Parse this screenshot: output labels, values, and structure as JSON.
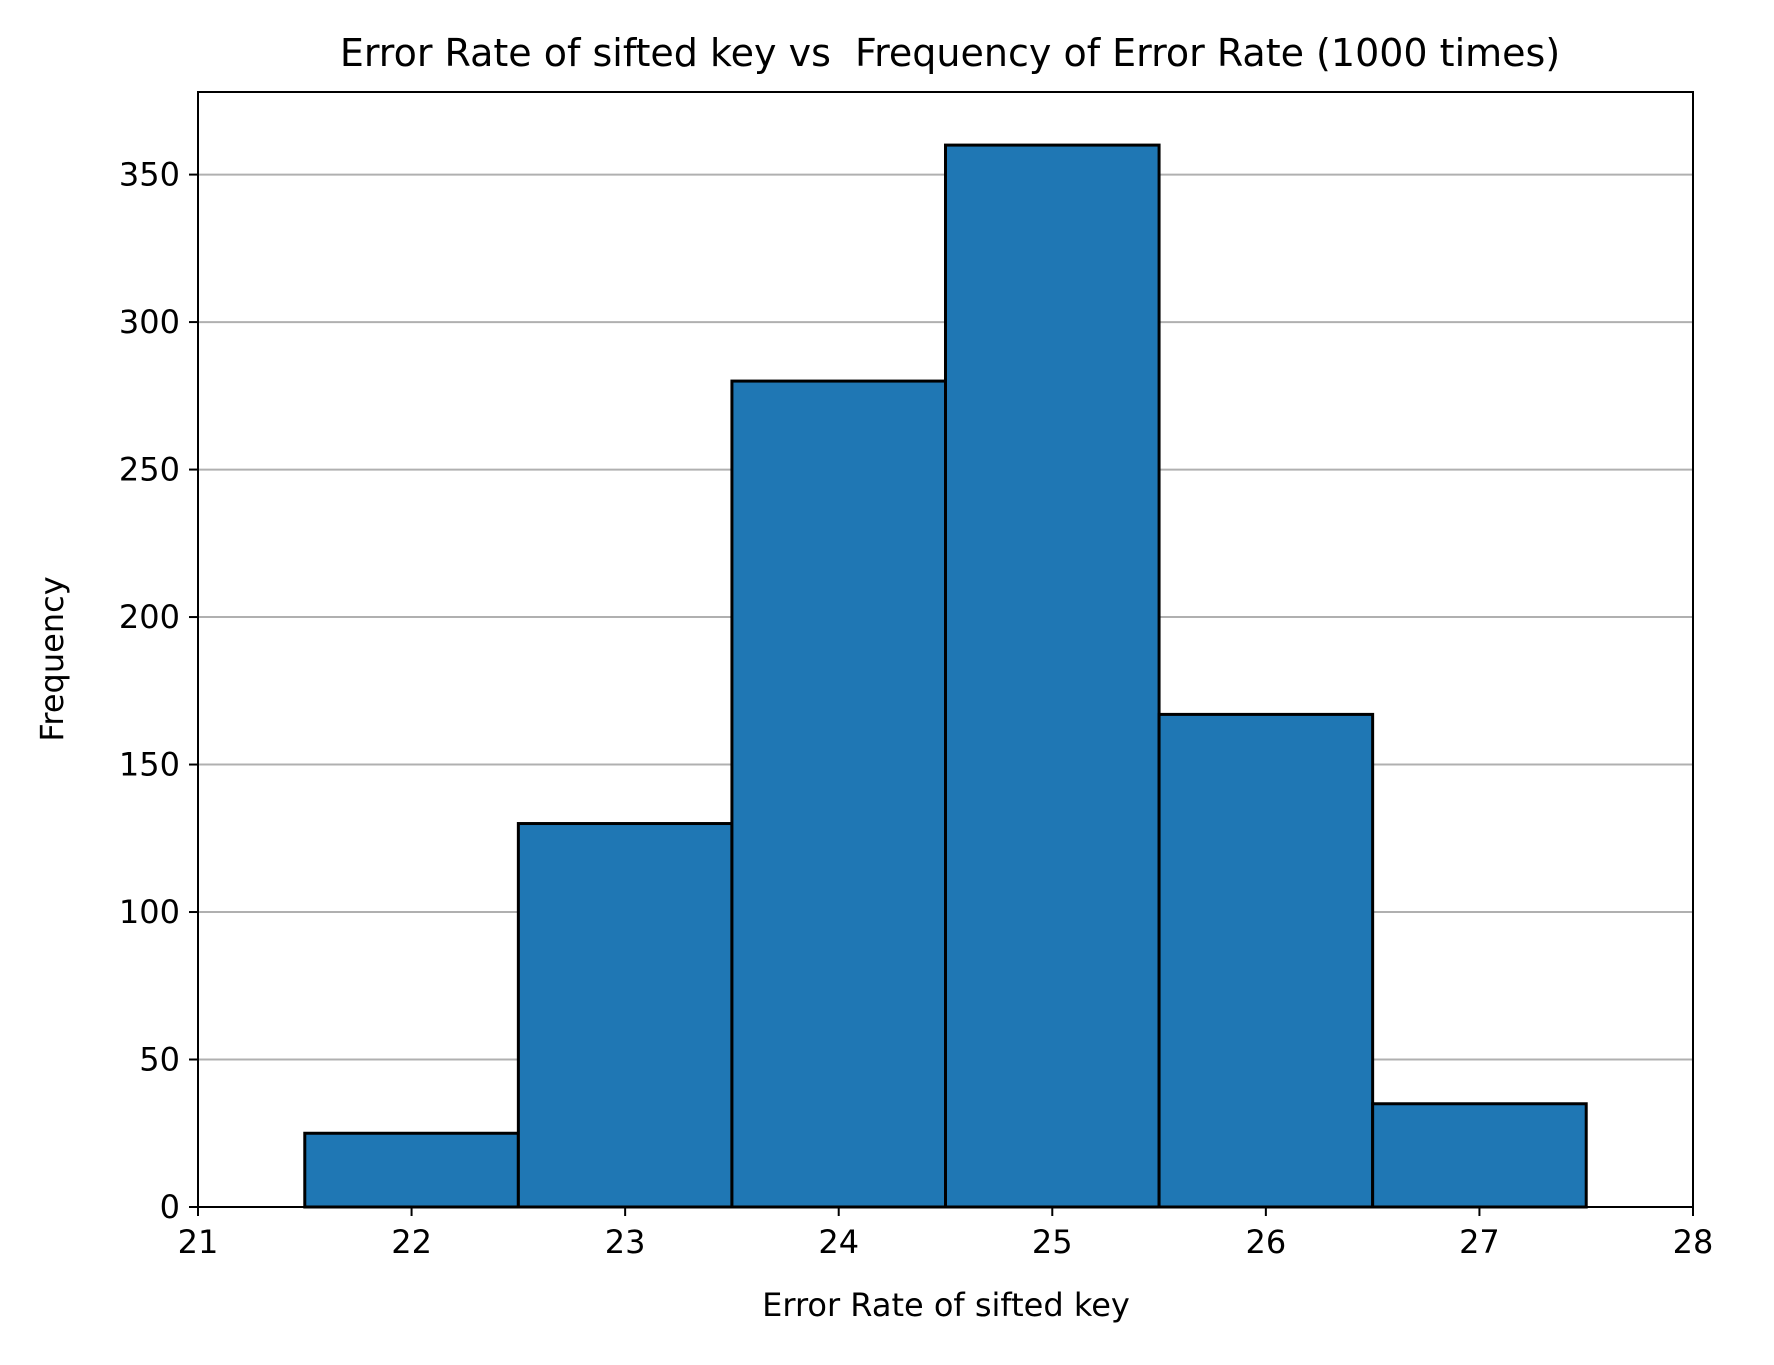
{
  "chart_data": {
    "type": "bar",
    "title": "Error Rate of sifted key vs  Frequency of Error Rate (1000 times)",
    "xlabel": "Error Rate of sifted key",
    "ylabel": "Frequency",
    "xlim": [
      21,
      28
    ],
    "ylim": [
      0,
      378
    ],
    "x_ticks": [
      21,
      22,
      23,
      24,
      25,
      26,
      27,
      28
    ],
    "y_ticks": [
      0,
      50,
      100,
      150,
      200,
      250,
      300,
      350
    ],
    "grid": "y",
    "bins": [
      {
        "start": 21.5,
        "end": 22.5,
        "value": 25
      },
      {
        "start": 22.5,
        "end": 23.5,
        "value": 130
      },
      {
        "start": 23.5,
        "end": 24.5,
        "value": 280
      },
      {
        "start": 24.5,
        "end": 25.5,
        "value": 360
      },
      {
        "start": 25.5,
        "end": 26.5,
        "value": 167
      },
      {
        "start": 26.5,
        "end": 27.5,
        "value": 35
      }
    ],
    "bar_color": "#1f77b4",
    "edge_color": "#000000",
    "grid_color": "#b0b0b0"
  }
}
